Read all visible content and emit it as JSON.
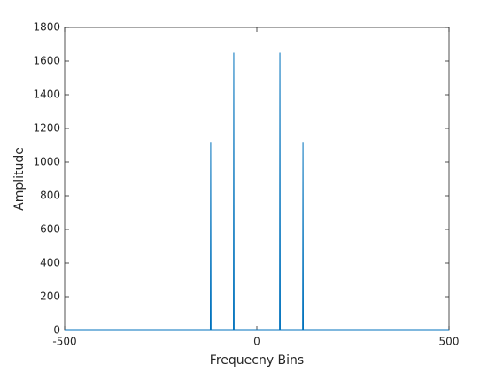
{
  "chart_data": {
    "type": "line",
    "x_label": "Frequecny Bins",
    "y_label": "Amplitude",
    "x": [
      -500,
      -121,
      -120,
      -119,
      -61,
      -60,
      -59,
      59,
      60,
      61,
      119,
      120,
      121,
      500
    ],
    "series": [
      {
        "color": "#0072bd",
        "values": [
          0,
          0,
          1120,
          0,
          0,
          1650,
          0,
          0,
          1650,
          0,
          0,
          1120,
          0,
          0
        ]
      }
    ],
    "xlim": [
      -500,
      500
    ],
    "xticks": [
      -500,
      0,
      500
    ],
    "ylim": [
      0,
      1800
    ],
    "yticks": [
      0,
      200,
      400,
      600,
      800,
      1000,
      1200,
      1400,
      1600,
      1800
    ],
    "grid": false
  }
}
